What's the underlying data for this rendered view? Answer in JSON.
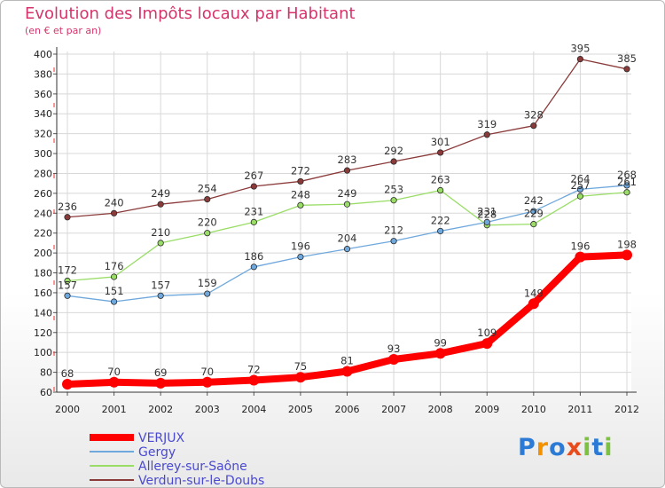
{
  "header": {
    "title": "Evolution des Impôts locaux par Habitant",
    "subtitle": "(en € et par an)"
  },
  "logo": {
    "text": "Proxiti"
  },
  "chart_data": {
    "type": "line",
    "title": "Evolution des Impôts locaux par Habitant",
    "subtitle": "(en € et par an)",
    "x": [
      "2000",
      "2001",
      "2002",
      "2003",
      "2004",
      "2005",
      "2006",
      "2007",
      "2008",
      "2009",
      "2010",
      "2011",
      "2012"
    ],
    "ylim": [
      60,
      400
    ],
    "yticks": [
      60,
      80,
      100,
      120,
      140,
      160,
      180,
      200,
      220,
      240,
      260,
      280,
      300,
      320,
      340,
      360,
      380,
      400
    ],
    "grid": true,
    "legend": "bottom-left",
    "series": [
      {
        "name": "VERJUX",
        "color": "#ff0000",
        "values": [
          68,
          70,
          69,
          70,
          72,
          75,
          81,
          93,
          99,
          109,
          149,
          196,
          198
        ],
        "labels": [
          "68",
          "70",
          "69",
          "70",
          "72",
          "75",
          "81",
          "93",
          "99",
          "109",
          "149",
          "196",
          "198"
        ]
      },
      {
        "name": "Gergy",
        "color": "#6fa8dc",
        "values": [
          157,
          151,
          157,
          159,
          186,
          196,
          204,
          212,
          222,
          231,
          242,
          264,
          268
        ],
        "labels": [
          "157",
          "151",
          "157",
          "159",
          "186",
          "196",
          "204",
          "212",
          "222",
          "231",
          "242",
          "264",
          "268"
        ]
      },
      {
        "name": "Allerey-sur-Saône",
        "color": "#99dd66",
        "values": [
          172,
          176,
          210,
          220,
          231,
          248,
          249,
          253,
          263,
          228,
          229,
          257,
          261
        ],
        "labels": [
          "172",
          "176",
          "210",
          "220",
          "231",
          "248",
          "249",
          "253",
          "263",
          "228",
          "229",
          "257",
          "261"
        ]
      },
      {
        "name": "Verdun-sur-le-Doubs",
        "color": "#8b3a3a",
        "values": [
          236,
          240,
          249,
          254,
          267,
          272,
          283,
          292,
          301,
          319,
          328,
          395,
          385
        ],
        "labels": [
          "236",
          "240",
          "249",
          "254",
          "267",
          "272",
          "283",
          "292",
          "301",
          "319",
          "328",
          "395",
          "385"
        ]
      }
    ]
  }
}
